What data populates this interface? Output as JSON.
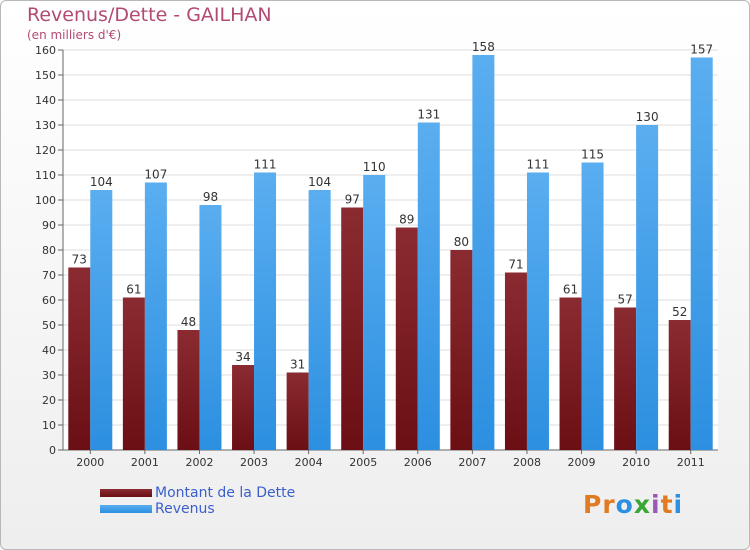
{
  "header": {
    "title": "Revenus/Dette - GAILHAN",
    "subtitle": "(en milliers d'€)"
  },
  "logo": {
    "text": "Proxiti"
  },
  "colors": {
    "dette": "#6b0f14",
    "revenus": "#2c8fe0",
    "title": "#b24a73",
    "legend_text": "#3a5fcd"
  },
  "chart_data": {
    "type": "bar",
    "title": "Revenus/Dette - GAILHAN",
    "ylabel": "(en milliers d'€)",
    "ylim": [
      0,
      160
    ],
    "yticks": [
      0,
      10,
      20,
      30,
      40,
      50,
      60,
      70,
      80,
      90,
      100,
      110,
      120,
      130,
      140,
      150,
      160
    ],
    "grid": true,
    "legend_position": "bottom-left",
    "categories": [
      "2000",
      "2001",
      "2002",
      "2003",
      "2004",
      "2005",
      "2006",
      "2007",
      "2008",
      "2009",
      "2010",
      "2011"
    ],
    "series": [
      {
        "name": "Montant de la Dette",
        "values": [
          73,
          61,
          48,
          34,
          31,
          97,
          89,
          80,
          71,
          61,
          57,
          52
        ]
      },
      {
        "name": "Revenus",
        "values": [
          104,
          107,
          98,
          111,
          104,
          110,
          131,
          158,
          111,
          115,
          130,
          157
        ]
      }
    ]
  }
}
